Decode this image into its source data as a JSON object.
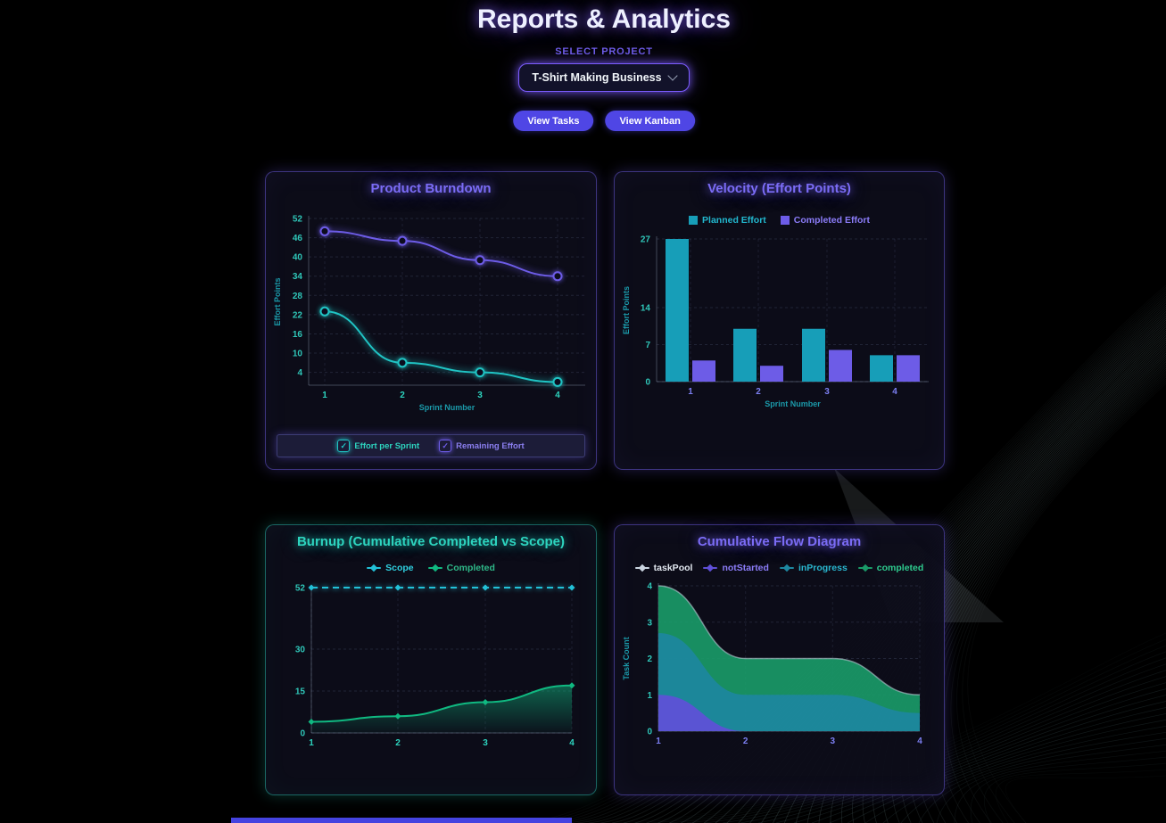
{
  "header": {
    "title": "Reports & Analytics",
    "select_label": "SELECT PROJECT",
    "project_value": "T-Shirt Making Business",
    "view_tasks": "View Tasks",
    "view_kanban": "View Kanban"
  },
  "chart_data": [
    {
      "id": "burndown",
      "type": "line",
      "title": "Product Burndown",
      "xlabel": "Sprint Number",
      "ylabel": "Effort Points",
      "x": [
        1,
        2,
        3,
        4
      ],
      "ylim": [
        0,
        52
      ],
      "yticks": [
        4,
        10,
        16,
        22,
        28,
        34,
        40,
        46,
        52
      ],
      "xtick_color": "#2dd4bf",
      "grid": true,
      "legend_position": "bottom",
      "series": [
        {
          "name": "Effort per Sprint",
          "color": "#20c4c4",
          "label_color": "#2dd4bf",
          "values": [
            23,
            7,
            4,
            1
          ]
        },
        {
          "name": "Remaining Effort",
          "color": "#6d5ce7",
          "label_color": "#8b7ff0",
          "values": [
            48,
            45,
            39,
            34
          ]
        }
      ]
    },
    {
      "id": "velocity",
      "type": "bar",
      "title": "Velocity (Effort Points)",
      "xlabel": "Sprint Number",
      "ylabel": "Effort Points",
      "categories": [
        "1",
        "2",
        "3",
        "4"
      ],
      "ylim": [
        0,
        27
      ],
      "yticks": [
        0,
        7,
        14,
        27
      ],
      "xtick_color": "#7c7ff2",
      "grid": true,
      "legend_position": "top",
      "series": [
        {
          "name": "Planned Effort",
          "color": "#179eb8",
          "label_color": "#22b8cf",
          "values": [
            27,
            10,
            10,
            5
          ]
        },
        {
          "name": "Completed Effort",
          "color": "#6d5ce7",
          "label_color": "#8b7cf8",
          "values": [
            4,
            3,
            6,
            5
          ]
        }
      ]
    },
    {
      "id": "burnup",
      "type": "line",
      "title": "Burnup (Cumulative Completed vs Scope)",
      "xlabel": "",
      "ylabel": "",
      "x": [
        1,
        2,
        3,
        4
      ],
      "ylim": [
        0,
        52
      ],
      "yticks": [
        0,
        15,
        30,
        52
      ],
      "xtick_color": "#2dd4bf",
      "grid": true,
      "legend_position": "top",
      "series": [
        {
          "name": "Scope",
          "color": "#22c1d8",
          "label_color": "#2fd0e0",
          "values": [
            52,
            52,
            52,
            52
          ],
          "dashed": true,
          "marker": "diamond"
        },
        {
          "name": "Completed",
          "color": "#10b981",
          "label_color": "#2eb888",
          "values": [
            4,
            6,
            11,
            17
          ],
          "area": true,
          "marker": "diamond"
        }
      ]
    },
    {
      "id": "cfd",
      "type": "stacked-area",
      "title": "Cumulative Flow Diagram",
      "xlabel": "",
      "ylabel": "Task Count",
      "x": [
        1,
        2,
        3,
        4
      ],
      "ylim": [
        0,
        4
      ],
      "yticks": [
        0,
        1,
        2,
        3,
        4
      ],
      "xtick_color": "#7c7ff2",
      "grid": true,
      "legend_position": "top",
      "series": [
        {
          "name": "taskPool",
          "color": "#cbd5e1",
          "label_color": "#e2e8f0",
          "values": [
            4,
            2,
            2,
            1
          ],
          "line_only": true
        },
        {
          "name": "notStarted",
          "color": "#5f4fd8",
          "label_color": "#8b7cf8",
          "values": [
            1,
            0,
            0,
            0
          ]
        },
        {
          "name": "inProgress",
          "color": "#1d87a0",
          "label_color": "#29b6cf",
          "values": [
            1.7,
            1,
            1,
            0.5
          ]
        },
        {
          "name": "completed",
          "color": "#1a9a68",
          "label_color": "#2ecc8f",
          "values": [
            1.3,
            1,
            1,
            0.5
          ]
        }
      ]
    }
  ],
  "footer": {
    "scroll_bar_color": "#4543e0"
  }
}
